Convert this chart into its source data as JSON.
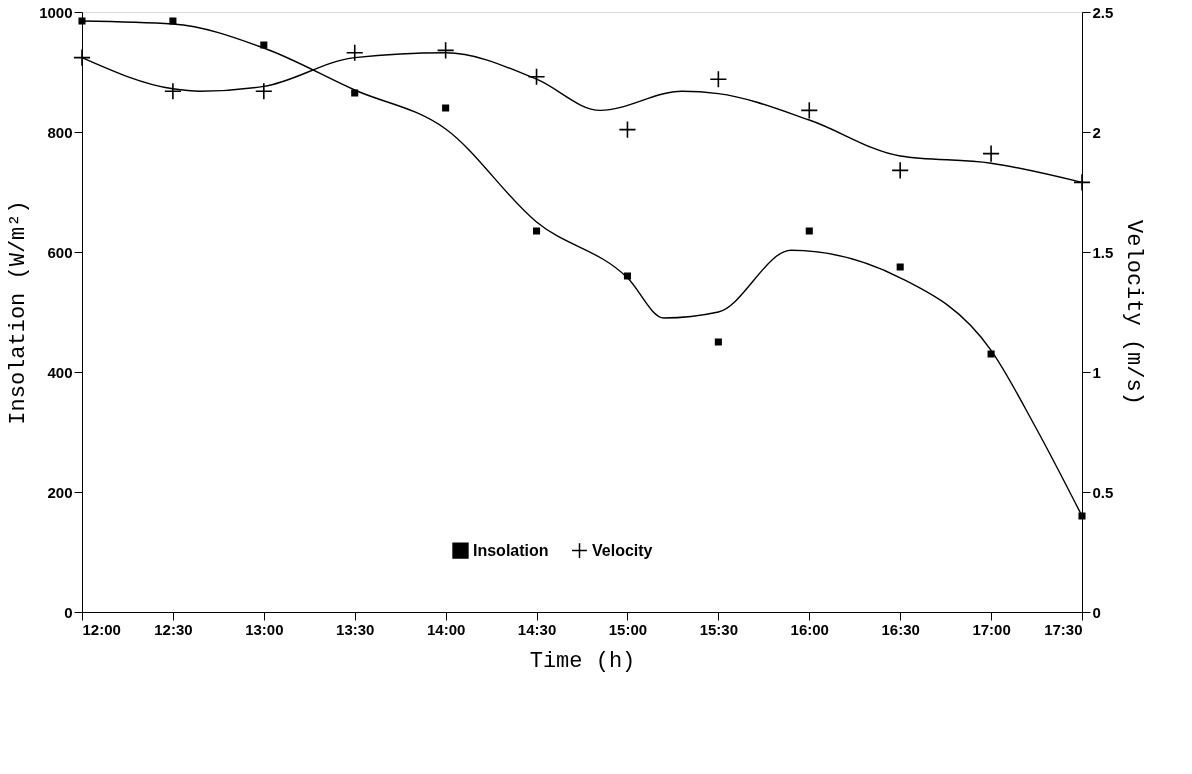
{
  "chart_data": {
    "type": "scatter",
    "xlabel": "Time (h)",
    "ylabel": "Insolation (W/m²)",
    "y2label": "Velocity (m/s)",
    "x": [
      12,
      12.5,
      13,
      13.5,
      14,
      14.5,
      15,
      15.5,
      16,
      16.5,
      17,
      17.5
    ],
    "xlim": [
      12,
      17.5
    ],
    "xticks": [
      {
        "value": 12,
        "label": "12:00"
      },
      {
        "value": 12.5,
        "label": "12:30"
      },
      {
        "value": 13,
        "label": "13:00"
      },
      {
        "value": 13.5,
        "label": "13:30"
      },
      {
        "value": 14,
        "label": "14:00"
      },
      {
        "value": 14.5,
        "label": "14:30"
      },
      {
        "value": 15,
        "label": "15:00"
      },
      {
        "value": 15.5,
        "label": "15:30"
      },
      {
        "value": 16,
        "label": "16:00"
      },
      {
        "value": 16.5,
        "label": "16:30"
      },
      {
        "value": 17,
        "label": "17:00"
      },
      {
        "value": 17.5,
        "label": "17:30"
      }
    ],
    "ylim": [
      0,
      1000
    ],
    "yticks": [
      0,
      200,
      400,
      600,
      800,
      1000
    ],
    "y2lim": [
      0,
      2.5
    ],
    "y2ticks": [
      0,
      0.5,
      1,
      1.5,
      2,
      2.5
    ],
    "grid": false,
    "legend": "bottom",
    "series": [
      {
        "name": "Insolation",
        "marker": "square",
        "color": "#000000",
        "values": [
          985,
          985,
          945,
          865,
          840,
          635,
          560,
          450,
          635,
          575,
          430,
          160
        ]
      },
      {
        "name": "Velocity",
        "marker": "cross",
        "axis": "y2",
        "color": "#000000",
        "values": [
          2.31,
          2.17,
          2.17,
          2.33,
          2.34,
          2.23,
          2.01,
          2.22,
          2.09,
          1.84,
          1.91,
          1.79
        ]
      },
      {
        "type": "line",
        "marker": "none",
        "line_style": "solid",
        "color": "#000000",
        "x": [
          12,
          12.5,
          13,
          13.5,
          14,
          14.5,
          15,
          15.2,
          15.5,
          15.9,
          16.5,
          17,
          17.25,
          17.5
        ],
        "values": [
          985,
          980,
          940,
          870,
          805,
          650,
          557,
          490,
          500,
          603,
          557,
          436,
          305,
          160
        ]
      },
      {
        "type": "line",
        "marker": "none",
        "line_style": "solid",
        "axis": "y2",
        "color": "#000000",
        "x": [
          12,
          12.5,
          12.65,
          13,
          13.5,
          14,
          14.5,
          14.85,
          15.3,
          15.5,
          16,
          16.5,
          17,
          17.5
        ],
        "values": [
          2.31,
          2.18,
          2.17,
          2.19,
          2.31,
          2.33,
          2.22,
          2.09,
          2.17,
          2.16,
          2.05,
          1.9,
          1.87,
          1.79
        ]
      }
    ]
  }
}
